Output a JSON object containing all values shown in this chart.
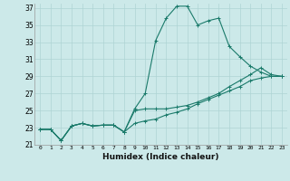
{
  "xlabel": "Humidex (Indice chaleur)",
  "xlim": [
    -0.5,
    23.5
  ],
  "ylim": [
    21,
    37.5
  ],
  "yticks": [
    21,
    23,
    25,
    27,
    29,
    31,
    33,
    35,
    37
  ],
  "xticks": [
    0,
    1,
    2,
    3,
    4,
    5,
    6,
    7,
    8,
    9,
    10,
    11,
    12,
    13,
    14,
    15,
    16,
    17,
    18,
    19,
    20,
    21,
    22,
    23
  ],
  "bg_color": "#cce9e9",
  "grid_color": "#aed4d4",
  "line_color": "#1a7a6a",
  "series": [
    [
      22.8,
      22.8,
      21.5,
      23.2,
      23.5,
      23.2,
      23.3,
      23.3,
      22.5,
      25.2,
      27.0,
      33.2,
      35.8,
      37.2,
      37.2,
      35.0,
      35.5,
      35.8,
      32.5,
      31.3,
      30.2,
      29.5,
      29.0,
      29.0
    ],
    [
      22.8,
      22.8,
      21.5,
      23.2,
      23.5,
      23.2,
      23.3,
      23.3,
      22.5,
      25.0,
      25.2,
      25.2,
      25.2,
      25.4,
      25.6,
      26.0,
      26.5,
      27.0,
      27.8,
      28.5,
      29.2,
      30.0,
      29.2,
      29.0
    ],
    [
      22.8,
      22.8,
      21.5,
      23.2,
      23.5,
      23.2,
      23.3,
      23.3,
      22.5,
      23.5,
      23.8,
      24.0,
      24.5,
      24.8,
      25.2,
      25.8,
      26.3,
      26.8,
      27.3,
      27.8,
      28.5,
      28.8,
      29.0,
      29.0
    ]
  ]
}
